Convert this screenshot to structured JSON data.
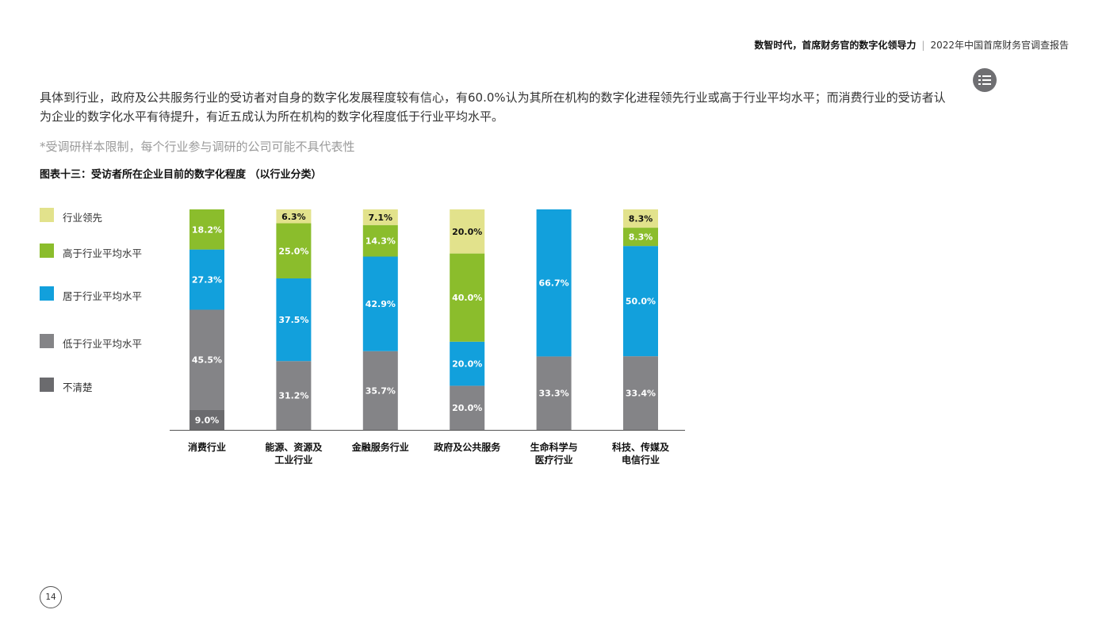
{
  "header": {
    "title_bold": "数智时代，首席财务官的数字化领导力",
    "title_right": "2022年中国首席财务官调查报告"
  },
  "toc_icon": "list-menu-icon",
  "intro": "具体到行业，政府及公共服务行业的受访者对自身的数字化发展程度较有信心，有60.0%认为其所在机构的数字化进程领先行业或高于行业平均水平；而消费行业的受访者认为企业的数字化水平有待提升，有近五成认为所在机构的数字化程度低于行业平均水平。",
  "note": "*受调研样本限制，每个行业参与调研的公司可能不具代表性",
  "page_number": "14",
  "chart_data": {
    "type": "bar",
    "stacked": true,
    "title": "图表十三：受访者所在企业目前的数字化程度 （以行业分类）",
    "categories": [
      [
        "消费行业"
      ],
      [
        "能源、资源及",
        "工业行业"
      ],
      [
        "金融服务行业"
      ],
      [
        "政府及公共服务"
      ],
      [
        "生命科学与",
        "医疗行业"
      ],
      [
        "科技、传媒及",
        "电信行业"
      ]
    ],
    "series": [
      {
        "name": "不清楚",
        "color": "#6b6b6e",
        "values": [
          9.0,
          0,
          0,
          0,
          0,
          0
        ]
      },
      {
        "name": "低于行业平均水平",
        "color": "#848487",
        "values": [
          45.5,
          31.2,
          35.7,
          20.0,
          33.3,
          33.4
        ]
      },
      {
        "name": "居于行业平均水平",
        "color": "#12a0dc",
        "values": [
          27.3,
          37.5,
          42.9,
          20.0,
          66.7,
          50.0
        ]
      },
      {
        "name": "高于行业平均水平",
        "color": "#8bbd2c",
        "values": [
          18.2,
          25.0,
          14.3,
          40.0,
          0,
          8.3
        ]
      },
      {
        "name": "行业领先",
        "color": "#e2e28c",
        "values": [
          0,
          6.3,
          7.1,
          20.0,
          0,
          8.3
        ]
      }
    ],
    "legend_order": [
      "行业领先",
      "高于行业平均水平",
      "居于行业平均水平",
      "低于行业平均水平",
      "不清楚"
    ],
    "ylim": [
      0,
      100
    ],
    "legend_position": "left",
    "grid": false
  }
}
